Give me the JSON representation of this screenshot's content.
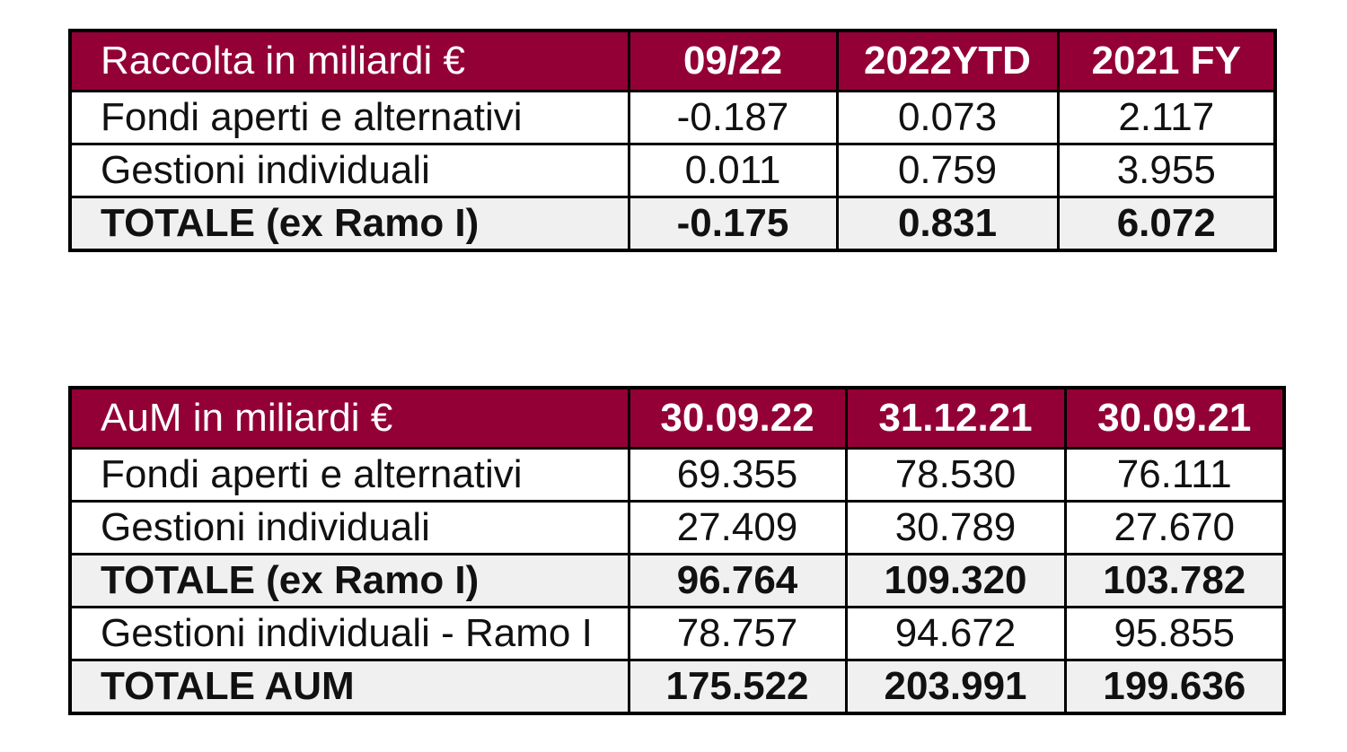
{
  "raccolta": {
    "header": {
      "label": "Raccolta in miliardi €",
      "columns": [
        "09/22",
        "2022YTD",
        "2021 FY"
      ]
    },
    "rows": [
      {
        "label": "Fondi aperti e alternativi",
        "values": [
          "-0.187",
          "0.073",
          "2.117"
        ],
        "total": false
      },
      {
        "label": "Gestioni individuali",
        "values": [
          "0.011",
          "0.759",
          "3.955"
        ],
        "total": false
      },
      {
        "label": "TOTALE (ex Ramo I)",
        "values": [
          "-0.175",
          "0.831",
          "6.072"
        ],
        "total": true
      }
    ]
  },
  "aum": {
    "header": {
      "label": "AuM in miliardi €",
      "columns": [
        "30.09.22",
        "31.12.21",
        "30.09.21"
      ]
    },
    "rows": [
      {
        "label": "Fondi aperti e alternativi",
        "values": [
          "69.355",
          "78.530",
          "76.111"
        ],
        "total": false
      },
      {
        "label": "Gestioni individuali",
        "values": [
          "27.409",
          "30.789",
          "27.670"
        ],
        "total": false
      },
      {
        "label": "TOTALE (ex Ramo I)",
        "values": [
          "96.764",
          "109.320",
          "103.782"
        ],
        "total": true
      },
      {
        "label": "Gestioni individuali - Ramo I",
        "values": [
          "78.757",
          "94.672",
          "95.855"
        ],
        "total": false
      },
      {
        "label": "TOTALE AUM",
        "values": [
          "175.522",
          "203.991",
          "199.636"
        ],
        "total": true
      }
    ]
  },
  "colors": {
    "header_bg": "#930036",
    "header_text": "#ffffff",
    "total_row_bg": "#f0f0f0",
    "border": "#000000"
  }
}
